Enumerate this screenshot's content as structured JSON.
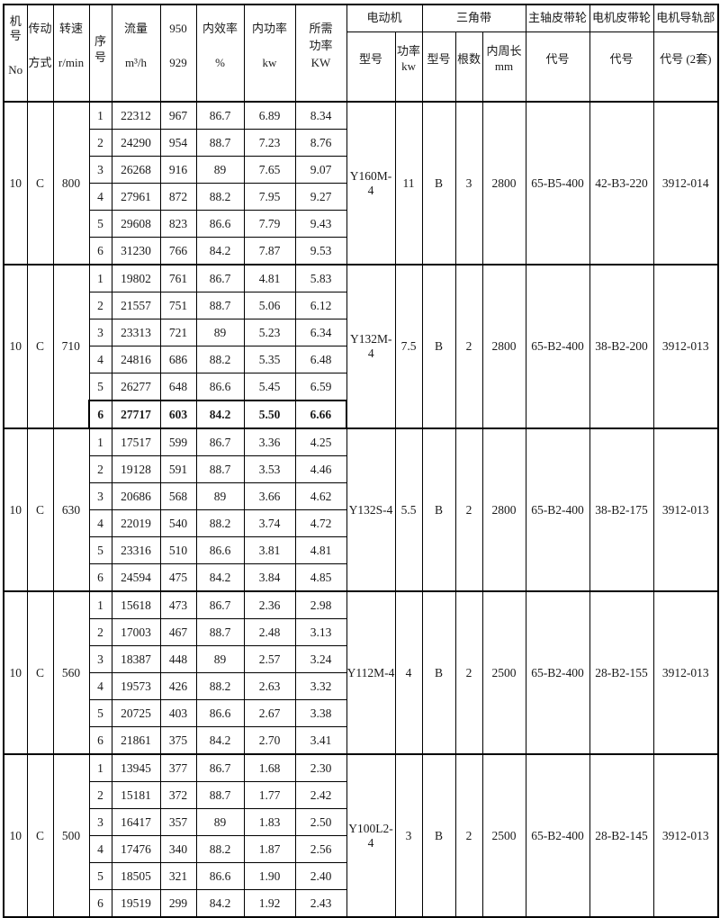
{
  "table": {
    "header": {
      "machine_no": [
        "机号",
        "No"
      ],
      "drive": [
        "传动",
        "方式"
      ],
      "speed": [
        "转速",
        "r/min"
      ],
      "seq": [
        "序",
        "号"
      ],
      "flow": [
        "流量",
        "m³/h"
      ],
      "pressure": [
        "950",
        "929"
      ],
      "efficiency": [
        "内效率",
        "%"
      ],
      "power": [
        "内功率",
        "kw"
      ],
      "required": [
        "所需",
        "功率",
        "KW"
      ],
      "motor_group": "电动机",
      "belt_group": "三角带",
      "main_pulley_group": "主轴皮带轮",
      "motor_pulley_group": "电机皮带轮",
      "rail_group": "电机导轨部",
      "motor_model": "型号",
      "motor_power": [
        "功率",
        "kw"
      ],
      "belt_model": "型号",
      "belt_count": "根数",
      "belt_length": [
        "内周长",
        "mm"
      ],
      "main_pulley_code": "代号",
      "motor_pulley_code": "代号",
      "rail_code": "代号 (2套)"
    },
    "highlight": {
      "group": 1,
      "row": 5
    },
    "groups": [
      {
        "machine_no": "10",
        "drive": "C",
        "speed": "800",
        "rows": [
          [
            "1",
            "22312",
            "967",
            "86.7",
            "6.89",
            "8.34"
          ],
          [
            "2",
            "24290",
            "954",
            "88.7",
            "7.23",
            "8.76"
          ],
          [
            "3",
            "26268",
            "916",
            "89",
            "7.65",
            "9.07"
          ],
          [
            "4",
            "27961",
            "872",
            "88.2",
            "7.95",
            "9.27"
          ],
          [
            "5",
            "29608",
            "823",
            "86.6",
            "7.79",
            "9.43"
          ],
          [
            "6",
            "31230",
            "766",
            "84.2",
            "7.87",
            "9.53"
          ]
        ],
        "motor_model": "Y160M-4",
        "motor_power": "11",
        "belt_model": "B",
        "belt_count": "3",
        "belt_length": "2800",
        "main_pulley": "65-B5-400",
        "motor_pulley": "42-B3-220",
        "rail_code": "3912-014"
      },
      {
        "machine_no": "10",
        "drive": "C",
        "speed": "710",
        "rows": [
          [
            "1",
            "19802",
            "761",
            "86.7",
            "4.81",
            "5.83"
          ],
          [
            "2",
            "21557",
            "751",
            "88.7",
            "5.06",
            "6.12"
          ],
          [
            "3",
            "23313",
            "721",
            "89",
            "5.23",
            "6.34"
          ],
          [
            "4",
            "24816",
            "686",
            "88.2",
            "5.35",
            "6.48"
          ],
          [
            "5",
            "26277",
            "648",
            "86.6",
            "5.45",
            "6.59"
          ],
          [
            "6",
            "27717",
            "603",
            "84.2",
            "5.50",
            "6.66"
          ]
        ],
        "motor_model": "Y132M-4",
        "motor_power": "7.5",
        "belt_model": "B",
        "belt_count": "2",
        "belt_length": "2800",
        "main_pulley": "65-B2-400",
        "motor_pulley": "38-B2-200",
        "rail_code": "3912-013"
      },
      {
        "machine_no": "10",
        "drive": "C",
        "speed": "630",
        "rows": [
          [
            "1",
            "17517",
            "599",
            "86.7",
            "3.36",
            "4.25"
          ],
          [
            "2",
            "19128",
            "591",
            "88.7",
            "3.53",
            "4.46"
          ],
          [
            "3",
            "20686",
            "568",
            "89",
            "3.66",
            "4.62"
          ],
          [
            "4",
            "22019",
            "540",
            "88.2",
            "3.74",
            "4.72"
          ],
          [
            "5",
            "23316",
            "510",
            "86.6",
            "3.81",
            "4.81"
          ],
          [
            "6",
            "24594",
            "475",
            "84.2",
            "3.84",
            "4.85"
          ]
        ],
        "motor_model": "Y132S-4",
        "motor_power": "5.5",
        "belt_model": "B",
        "belt_count": "2",
        "belt_length": "2800",
        "main_pulley": "65-B2-400",
        "motor_pulley": "38-B2-175",
        "rail_code": "3912-013"
      },
      {
        "machine_no": "10",
        "drive": "C",
        "speed": "560",
        "rows": [
          [
            "1",
            "15618",
            "473",
            "86.7",
            "2.36",
            "2.98"
          ],
          [
            "2",
            "17003",
            "467",
            "88.7",
            "2.48",
            "3.13"
          ],
          [
            "3",
            "18387",
            "448",
            "89",
            "2.57",
            "3.24"
          ],
          [
            "4",
            "19573",
            "426",
            "88.2",
            "2.63",
            "3.32"
          ],
          [
            "5",
            "20725",
            "403",
            "86.6",
            "2.67",
            "3.38"
          ],
          [
            "6",
            "21861",
            "375",
            "84.2",
            "2.70",
            "3.41"
          ]
        ],
        "motor_model": "Y112M-4",
        "motor_power": "4",
        "belt_model": "B",
        "belt_count": "2",
        "belt_length": "2500",
        "main_pulley": "65-B2-400",
        "motor_pulley": "28-B2-155",
        "rail_code": "3912-013"
      },
      {
        "machine_no": "10",
        "drive": "C",
        "speed": "500",
        "rows": [
          [
            "1",
            "13945",
            "377",
            "86.7",
            "1.68",
            "2.30"
          ],
          [
            "2",
            "15181",
            "372",
            "88.7",
            "1.77",
            "2.42"
          ],
          [
            "3",
            "16417",
            "357",
            "89",
            "1.83",
            "2.50"
          ],
          [
            "4",
            "17476",
            "340",
            "88.2",
            "1.87",
            "2.56"
          ],
          [
            "5",
            "18505",
            "321",
            "86.6",
            "1.90",
            "2.40"
          ],
          [
            "6",
            "19519",
            "299",
            "84.2",
            "1.92",
            "2.43"
          ]
        ],
        "motor_model": "Y100L2-4",
        "motor_power": "3",
        "belt_model": "B",
        "belt_count": "2",
        "belt_length": "2500",
        "main_pulley": "65-B2-400",
        "motor_pulley": "28-B2-145",
        "rail_code": "3912-013"
      }
    ]
  }
}
